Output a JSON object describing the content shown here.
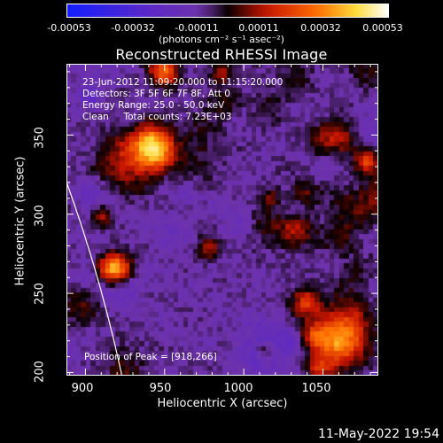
{
  "colorbar": {
    "ticks": [
      "-0.00053",
      "-0.00032",
      "-0.00011",
      "0.00011",
      "0.00032",
      "0.00053"
    ],
    "units_label": "(photons cm⁻² s⁻¹ asec⁻²)",
    "range": [
      -0.00053,
      0.00053
    ]
  },
  "chart_data": {
    "type": "heatmap",
    "title": "Reconstructed RHESSI Image",
    "xlabel": "Heliocentric X (arcsec)",
    "ylabel": "Heliocentric Y (arcsec)",
    "xlim": [
      888,
      1085
    ],
    "ylim": [
      198,
      395
    ],
    "x_ticks": [
      "900",
      "950",
      "1000",
      "1050"
    ],
    "y_ticks": [
      "200",
      "250",
      "300",
      "350"
    ],
    "annotations": [
      "23-Jun-2012 11:09:20.000 to 11:15:20.000",
      "Detectors: 3F 5F 6F 7F 8F, Att 0",
      "Energy Range: 25.0 - 50.0 keV",
      "Clean     Total counts: 7.23E+03"
    ],
    "peak_label": "Position of Peak = [918,266]",
    "peak_position": [
      918,
      266
    ],
    "colormap": "hot-blue (RHESSI)"
  },
  "footer": {
    "date": "11-May-2022 19:54"
  }
}
